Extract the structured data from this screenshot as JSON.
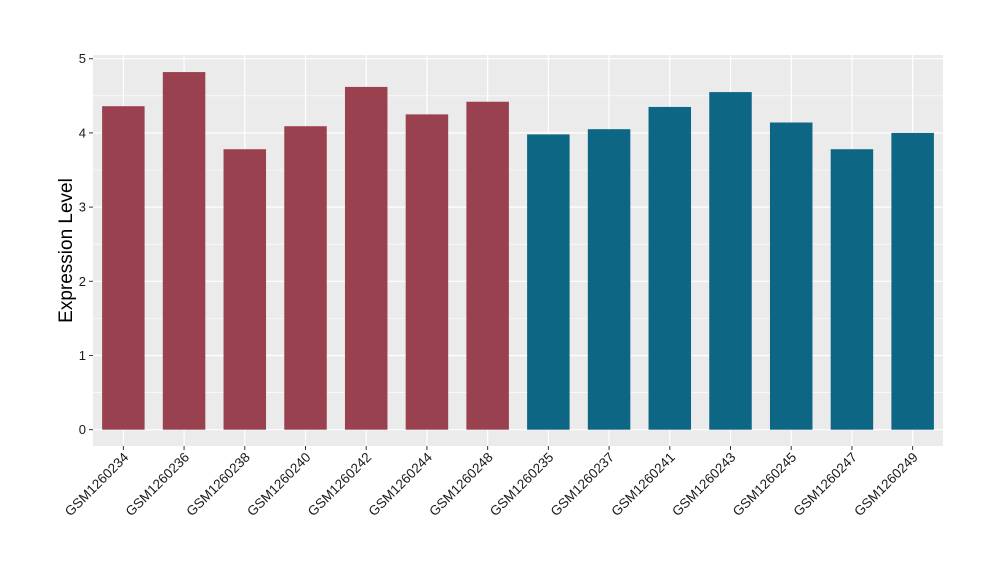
{
  "chart_data": {
    "type": "bar",
    "ylabel": "Expression Level",
    "ylim": [
      -0.22,
      5.05
    ],
    "y_ticks": [
      0,
      1,
      2,
      3,
      4,
      5
    ],
    "grid": true,
    "categories": [
      "GSM1260234",
      "GSM1260236",
      "GSM1260238",
      "GSM1260240",
      "GSM1260242",
      "GSM1260244",
      "GSM1260248",
      "GSM1260235",
      "GSM1260237",
      "GSM1260241",
      "GSM1260243",
      "GSM1260245",
      "GSM1260247",
      "GSM1260249"
    ],
    "values": [
      4.36,
      4.82,
      3.78,
      4.09,
      4.62,
      4.25,
      4.42,
      3.98,
      4.05,
      4.35,
      4.55,
      4.14,
      3.78,
      4.0
    ],
    "group_of_bar": [
      0,
      0,
      0,
      0,
      0,
      0,
      0,
      1,
      1,
      1,
      1,
      1,
      1,
      1
    ],
    "group_colors": [
      "#9a4150",
      "#0c6684"
    ],
    "panel_background": "#ebebeb",
    "gridline_color": "#ffffff"
  }
}
